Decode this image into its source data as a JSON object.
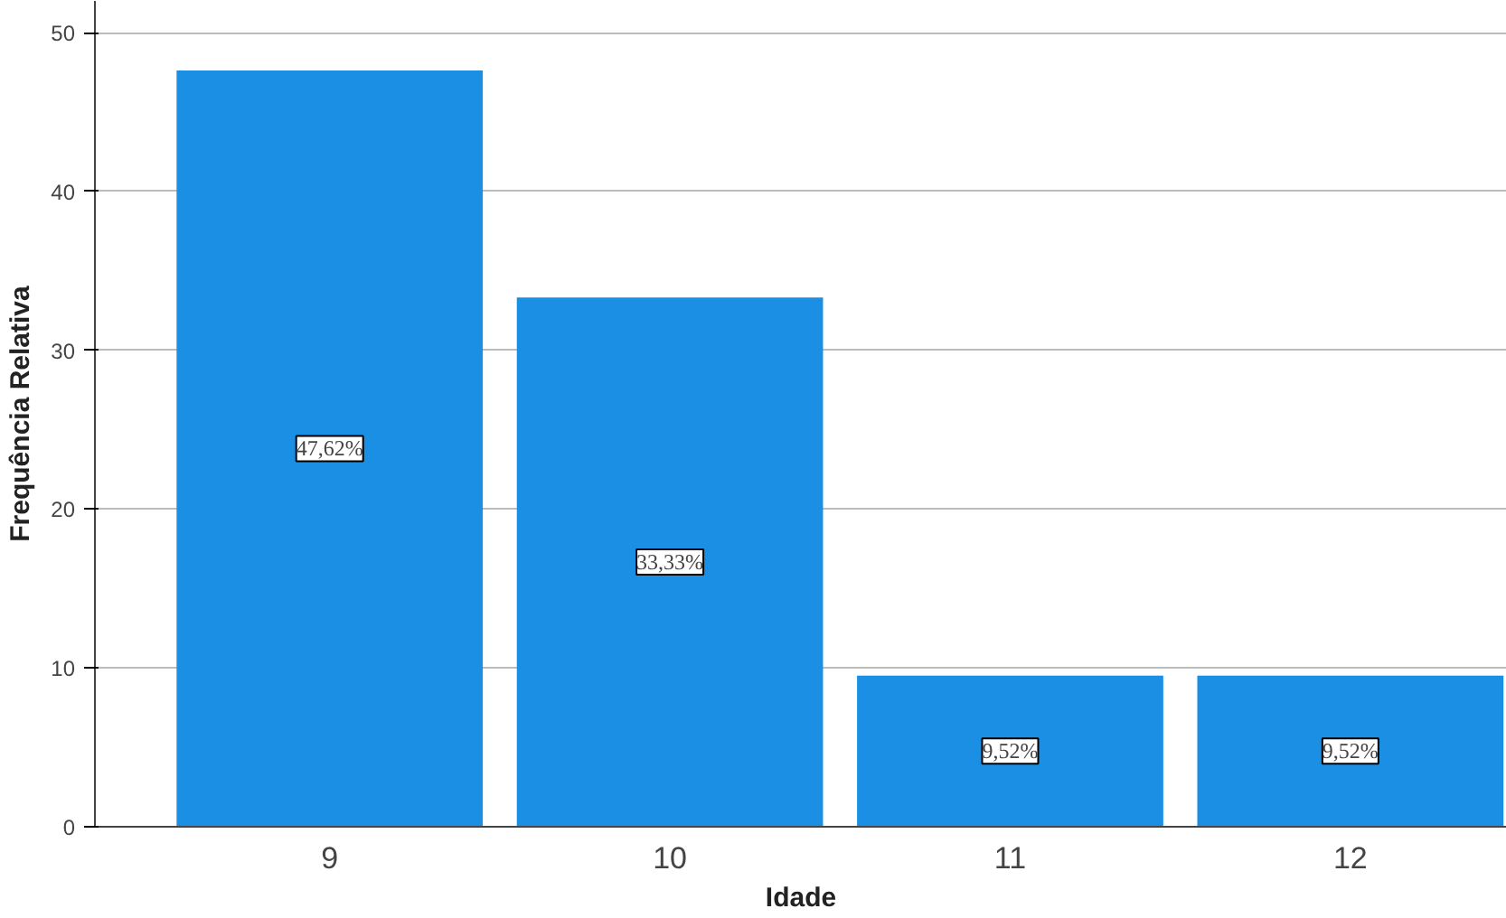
{
  "chart_data": {
    "type": "bar",
    "xlabel": "Idade",
    "ylabel": "Frequência Relativa",
    "categories": [
      "9",
      "10",
      "11",
      "12"
    ],
    "values": [
      47.62,
      33.33,
      9.52,
      9.52
    ],
    "value_labels": [
      "47,62%",
      "33,33%",
      "9,52%",
      "9,52%"
    ],
    "color": "#1a8fe3",
    "ylim": [
      0,
      52
    ],
    "yticks": [
      0,
      10,
      20,
      30,
      40,
      50
    ],
    "grid": "y"
  }
}
